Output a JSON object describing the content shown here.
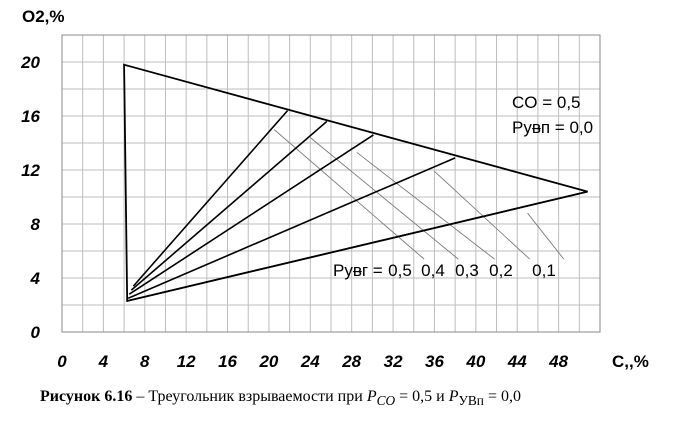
{
  "chart_data": {
    "type": "line",
    "title": "",
    "xlabel": "C,,%",
    "ylabel": "O2,%",
    "xlim": [
      0,
      52
    ],
    "ylim": [
      0,
      22
    ],
    "x_ticks": [
      0,
      4,
      8,
      12,
      16,
      20,
      24,
      28,
      32,
      36,
      40,
      44,
      48
    ],
    "y_ticks": [
      0,
      4,
      8,
      12,
      16,
      20
    ],
    "grid": true,
    "triangle": [
      {
        "x": 6.0,
        "y": 19.8
      },
      {
        "x": 50.8,
        "y": 10.4
      },
      {
        "x": 6.3,
        "y": 2.3
      }
    ],
    "series": [
      {
        "name": "0,5",
        "points": [
          {
            "x": 6.9,
            "y": 3.4
          },
          {
            "x": 21.8,
            "y": 16.4
          }
        ]
      },
      {
        "name": "0,4",
        "points": [
          {
            "x": 6.7,
            "y": 3.1
          },
          {
            "x": 25.6,
            "y": 15.6
          }
        ]
      },
      {
        "name": "0,3",
        "points": [
          {
            "x": 6.5,
            "y": 2.8
          },
          {
            "x": 30.1,
            "y": 14.6
          }
        ]
      },
      {
        "name": "0,2",
        "points": [
          {
            "x": 6.4,
            "y": 2.5
          },
          {
            "x": 38.0,
            "y": 12.9
          }
        ]
      },
      {
        "name": "0,1",
        "points": [
          {
            "x": 6.3,
            "y": 2.3
          },
          {
            "x": 50.8,
            "y": 10.4
          }
        ]
      }
    ],
    "leader_lines": [
      {
        "from": {
          "x": 20.5,
          "y": 15.0
        },
        "to": {
          "x": 35.0,
          "y": 5.4
        }
      },
      {
        "from": {
          "x": 24.0,
          "y": 14.4
        },
        "to": {
          "x": 38.3,
          "y": 5.4
        }
      },
      {
        "from": {
          "x": 28.5,
          "y": 13.3
        },
        "to": {
          "x": 41.8,
          "y": 5.4
        }
      },
      {
        "from": {
          "x": 36.0,
          "y": 11.9
        },
        "to": {
          "x": 45.2,
          "y": 5.4
        }
      },
      {
        "from": {
          "x": 45.0,
          "y": 8.8
        },
        "to": {
          "x": 48.5,
          "y": 5.4
        }
      }
    ],
    "annotations": {
      "co": "CO  = 0,5",
      "pvp": "Pуᴃп = 0,0",
      "pvg_prefix": "Pуᴃг = ",
      "pvg_values": [
        "0,5",
        "0,4",
        "0,3",
        "0,2",
        "0,1"
      ]
    }
  },
  "caption": {
    "bold": "Рисунок 6.16",
    "text": " – Треугольник взрываемости при ",
    "sym1": "P",
    "sub1": "CO",
    "eq1": " = 0,5 и ",
    "sym2": "P",
    "sub2": "УВп",
    "eq2": " = 0,0"
  }
}
